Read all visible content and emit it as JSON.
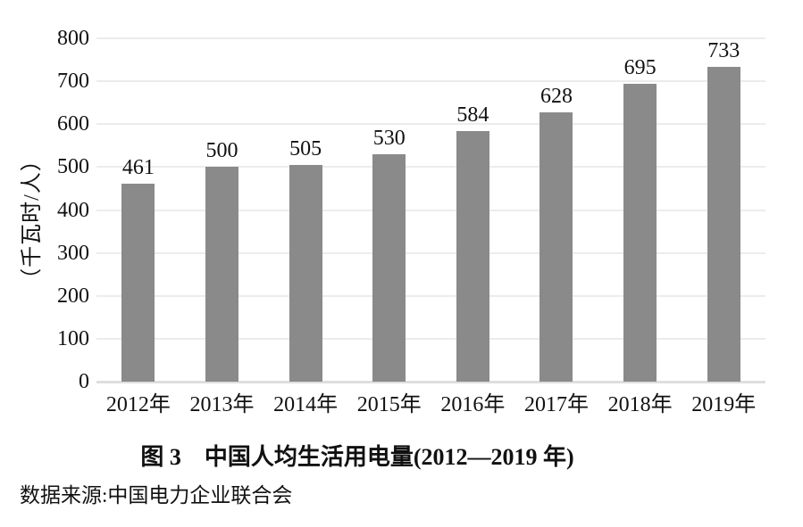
{
  "figure": {
    "caption": "图 3　中国人均生活用电量(2012—2019 年)",
    "source_note": "数据来源:中国电力企业联合会",
    "y_axis_title": "（千瓦时/人）"
  },
  "chart_data": {
    "type": "bar",
    "title": "图 3　中国人均生活用电量(2012—2019 年)",
    "categories": [
      "2012年",
      "2013年",
      "2014年",
      "2015年",
      "2016年",
      "2017年",
      "2018年",
      "2019年"
    ],
    "values": [
      461,
      500,
      505,
      530,
      584,
      628,
      695,
      733
    ],
    "xlabel": "",
    "ylabel": "（千瓦时/人）",
    "ylim": [
      0,
      800
    ],
    "ytick_step": 100,
    "grid": "horizontal",
    "legend": "none",
    "value_labels": true,
    "source": "数据来源:中国电力企业联合会",
    "colors": {
      "bar": "#8a8a8a",
      "gridline": "#ececec",
      "baseline": "#dedede",
      "text": "#111111",
      "background": "#ffffff"
    }
  }
}
